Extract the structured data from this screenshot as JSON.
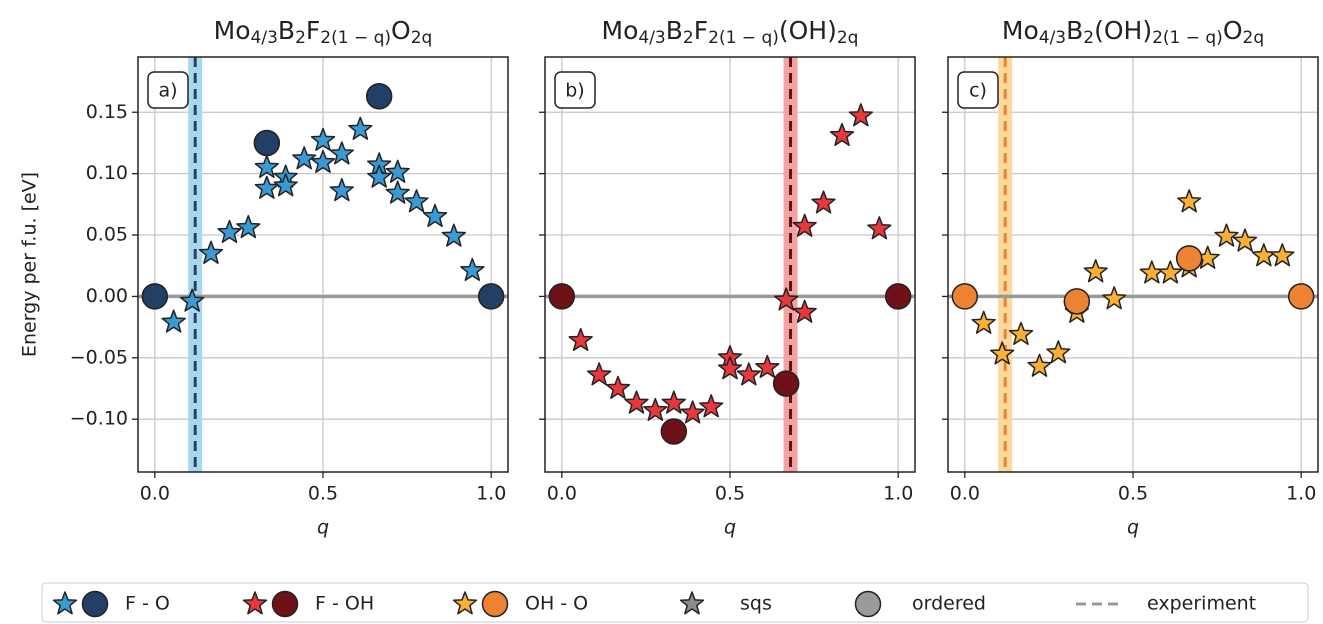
{
  "chart_data": [
    {
      "type": "scatter",
      "panel_label": "a)",
      "title": [
        {
          "text": "Mo"
        },
        {
          "text": "4/3",
          "sub": true
        },
        {
          "text": "B"
        },
        {
          "text": "2",
          "sub": true
        },
        {
          "text": "F"
        },
        {
          "text": "2(1 − q)",
          "sub": true
        },
        {
          "text": "O"
        },
        {
          "text": "2q",
          "sub": true
        }
      ],
      "xlabel": "q",
      "ylabel": "Energy per f.u. [eV]",
      "xlim": [
        -0.05,
        1.05
      ],
      "ylim": [
        -0.143,
        0.195
      ],
      "xticks": [
        {
          "value": 0,
          "label": "0.0"
        },
        {
          "value": 0.5,
          "label": "0.5"
        },
        {
          "value": 1,
          "label": "1.0"
        }
      ],
      "yticks": [
        {
          "value": -0.1,
          "label": "−0.10"
        },
        {
          "value": -0.05,
          "label": "−0.05"
        },
        {
          "value": 0,
          "label": "0.00"
        },
        {
          "value": 0.05,
          "label": "0.05"
        },
        {
          "value": 0.1,
          "label": "0.10"
        },
        {
          "value": 0.15,
          "label": "0.15"
        }
      ],
      "grid": true,
      "hline": 0,
      "experiment": {
        "x": 0.12,
        "color": "#2b4060",
        "band_color": "#a8d7f0"
      },
      "series": [
        {
          "marker": "star",
          "color": "#3a9ad6",
          "x": [
            0.056,
            0.111,
            0.167,
            0.222,
            0.278,
            0.333,
            0.333,
            0.389,
            0.389,
            0.444,
            0.5,
            0.5,
            0.556,
            0.556,
            0.611,
            0.667,
            0.667,
            0.722,
            0.722,
            0.778,
            0.833,
            0.889,
            0.944
          ],
          "values": [
            -0.021,
            -0.004,
            0.035,
            0.052,
            0.056,
            0.105,
            0.088,
            0.097,
            0.09,
            0.112,
            0.127,
            0.109,
            0.116,
            0.086,
            0.136,
            0.107,
            0.097,
            0.101,
            0.084,
            0.077,
            0.065,
            0.049,
            0.021
          ]
        },
        {
          "marker": "circle",
          "color": "#243f66",
          "x": [
            0,
            0.333,
            0.667,
            1
          ],
          "values": [
            0,
            0.125,
            0.163,
            0
          ]
        }
      ]
    },
    {
      "type": "scatter",
      "panel_label": "b)",
      "title": [
        {
          "text": "Mo"
        },
        {
          "text": "4/3",
          "sub": true
        },
        {
          "text": "B"
        },
        {
          "text": "2",
          "sub": true
        },
        {
          "text": "F"
        },
        {
          "text": "2(1 − q)",
          "sub": true
        },
        {
          "text": "(OH)"
        },
        {
          "text": "2q",
          "sub": true
        }
      ],
      "xlabel": "q",
      "xlim": [
        -0.05,
        1.05
      ],
      "ylim": [
        -0.143,
        0.195
      ],
      "xticks": [
        {
          "value": 0,
          "label": "0.0"
        },
        {
          "value": 0.5,
          "label": "0.5"
        },
        {
          "value": 1,
          "label": "1.0"
        }
      ],
      "yticks": [
        -0.1,
        -0.05,
        0,
        0.05,
        0.1,
        0.15
      ],
      "grid": true,
      "hline": 0,
      "experiment": {
        "x": 0.68,
        "color": "#5b1015",
        "band_color": "#f4a3a3"
      },
      "series": [
        {
          "marker": "star",
          "color": "#e8383e",
          "x": [
            0.056,
            0.111,
            0.167,
            0.222,
            0.278,
            0.333,
            0.389,
            0.444,
            0.5,
            0.5,
            0.556,
            0.611,
            0.667,
            0.722,
            0.722,
            0.778,
            0.833,
            0.889,
            0.944
          ],
          "values": [
            -0.036,
            -0.064,
            -0.075,
            -0.087,
            -0.093,
            -0.087,
            -0.095,
            -0.09,
            -0.05,
            -0.059,
            -0.064,
            -0.058,
            -0.003,
            -0.013,
            0.057,
            0.076,
            0.131,
            0.147,
            0.055
          ]
        },
        {
          "marker": "circle",
          "color": "#6e1218",
          "x": [
            0,
            0.333,
            0.667,
            1
          ],
          "values": [
            0,
            -0.11,
            -0.071,
            0
          ]
        }
      ]
    },
    {
      "type": "scatter",
      "panel_label": "c)",
      "title": [
        {
          "text": "Mo"
        },
        {
          "text": "4/3",
          "sub": true
        },
        {
          "text": "B"
        },
        {
          "text": "2",
          "sub": true
        },
        {
          "text": "(OH)"
        },
        {
          "text": "2(1 − q)",
          "sub": true
        },
        {
          "text": "O"
        },
        {
          "text": "2q",
          "sub": true
        }
      ],
      "xlabel": "q",
      "xlim": [
        -0.05,
        1.05
      ],
      "ylim": [
        -0.143,
        0.195
      ],
      "xticks": [
        {
          "value": 0,
          "label": "0.0"
        },
        {
          "value": 0.5,
          "label": "0.5"
        },
        {
          "value": 1,
          "label": "1.0"
        }
      ],
      "yticks": [
        -0.1,
        -0.05,
        0,
        0.05,
        0.1,
        0.15
      ],
      "grid": true,
      "hline": 0,
      "experiment": {
        "x": 0.12,
        "color": "#e2862b",
        "band_color": "#fcd8a0"
      },
      "series": [
        {
          "marker": "star",
          "color": "#fbb034",
          "x": [
            0.056,
            0.111,
            0.167,
            0.222,
            0.278,
            0.333,
            0.389,
            0.444,
            0.556,
            0.611,
            0.667,
            0.667,
            0.722,
            0.778,
            0.833,
            0.889,
            0.944
          ],
          "values": [
            -0.022,
            -0.047,
            -0.031,
            -0.057,
            -0.046,
            -0.013,
            0.02,
            -0.002,
            0.019,
            0.019,
            0.024,
            0.077,
            0.031,
            0.049,
            0.045,
            0.033,
            0.033
          ]
        },
        {
          "marker": "circle",
          "color": "#ec8232",
          "x": [
            0,
            0.333,
            0.667,
            1
          ],
          "values": [
            0,
            -0.004,
            0.031,
            0
          ]
        }
      ]
    }
  ],
  "legend": {
    "entries": [
      {
        "label": "F - O",
        "markers": [
          "star",
          "circle"
        ],
        "colors": [
          "#3a9ad6",
          "#243f66"
        ]
      },
      {
        "label": "F - OH",
        "markers": [
          "star",
          "circle"
        ],
        "colors": [
          "#e8383e",
          "#6e1218"
        ]
      },
      {
        "label": "OH - O",
        "markers": [
          "star",
          "circle"
        ],
        "colors": [
          "#fbb034",
          "#ec8232"
        ]
      },
      {
        "label": "sqs",
        "markers": [
          "star"
        ],
        "colors": [
          "#8c8c8c"
        ]
      },
      {
        "label": "ordered",
        "markers": [
          "circle"
        ],
        "colors": [
          "#9a9a9a"
        ]
      },
      {
        "label": "experiment",
        "markers": [
          "dash"
        ],
        "colors": [
          "#9a9a9a"
        ]
      }
    ]
  }
}
